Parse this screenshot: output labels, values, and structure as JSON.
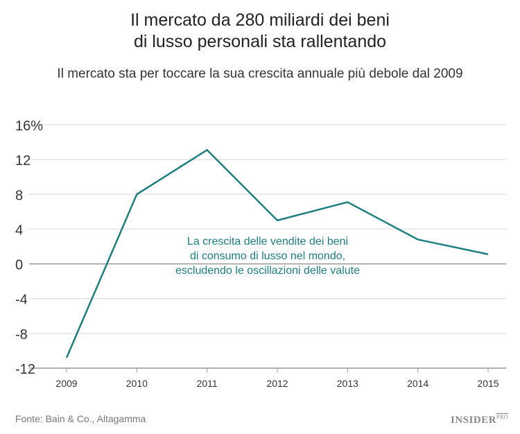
{
  "chart_data": {
    "type": "line",
    "title": "Il mercato da 280 miliardi dei beni di lusso personali sta rallentando",
    "title_lines": [
      "Il mercato da 280 miliardi dei beni",
      "di lusso personali sta rallentando"
    ],
    "subtitle": "Il mercato sta per toccare la sua crescita annuale più debole dal 2009",
    "xlabel": "",
    "ylabel": "",
    "categories": [
      "2009",
      "2010",
      "2011",
      "2012",
      "2013",
      "2014",
      "2015"
    ],
    "values": [
      -10.8,
      8.0,
      13.1,
      5.0,
      7.1,
      2.8,
      1.1
    ],
    "ylim": [
      -12,
      16
    ],
    "yticks": [
      16,
      12,
      8,
      4,
      0,
      -4,
      -8,
      -12
    ],
    "ytick_labels": [
      "16%",
      "12",
      "8",
      "4",
      "0",
      "-4",
      "-8",
      "-12"
    ],
    "grid": true,
    "annotation_lines": [
      "La crescita delle vendite dei beni",
      "di consumo di lusso nel mondo,",
      "escludendo le oscillazioni delle valute"
    ],
    "line_color": "#1b7f80"
  },
  "source": "Fonte: Bain & Co., Altagamma",
  "logo": {
    "text": "INSIDER",
    "sup": "PRO"
  }
}
